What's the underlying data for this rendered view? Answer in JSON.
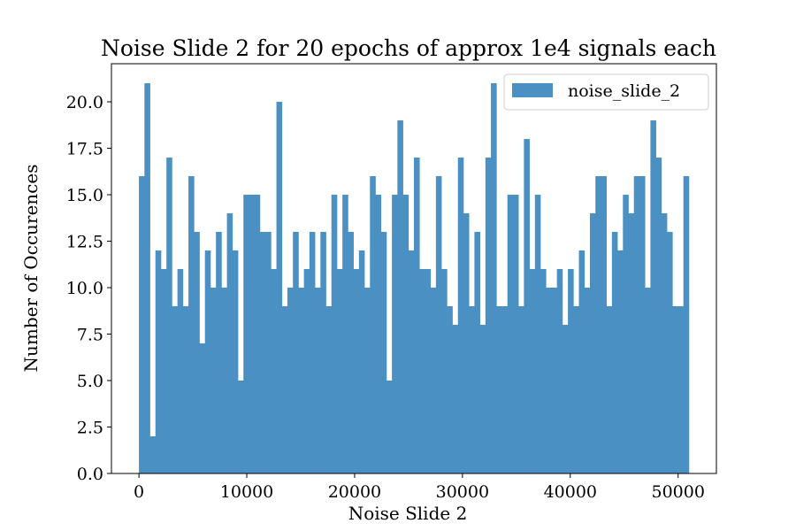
{
  "chart_data": {
    "type": "bar",
    "title": "Noise Slide 2 for 20 epochs of approx 1e4 signals each",
    "xlabel": "Noise Slide 2",
    "ylabel": "Number of Occurences",
    "xlim": [
      -2550,
      53550
    ],
    "ylim": [
      0,
      22.05
    ],
    "bin_start": 0,
    "bin_width": 510,
    "x_ticks": [
      0,
      10000,
      20000,
      30000,
      40000,
      50000
    ],
    "x_tick_labels": [
      "0",
      "10000",
      "20000",
      "30000",
      "40000",
      "50000"
    ],
    "y_ticks": [
      0,
      2.5,
      5,
      7.5,
      10,
      12.5,
      15,
      17.5,
      20
    ],
    "y_tick_labels": [
      "0.0",
      "2.5",
      "5.0",
      "7.5",
      "10.0",
      "12.5",
      "15.0",
      "17.5",
      "20.0"
    ],
    "grid": false,
    "legend_position": "top-right",
    "series": [
      {
        "name": "noise_slide_2",
        "color": "#4a90c2",
        "values": [
          16,
          21,
          2,
          12,
          11,
          17,
          9,
          11,
          9,
          16,
          13,
          7,
          12,
          10,
          13,
          10,
          14,
          12,
          5,
          15,
          15,
          15,
          13,
          13,
          11,
          20,
          9,
          10,
          13,
          10,
          11,
          13,
          10,
          13,
          9,
          15,
          11,
          15,
          13,
          11,
          12,
          10,
          16,
          15,
          13,
          5,
          15,
          19,
          15,
          12,
          17,
          11,
          11,
          10,
          16,
          11,
          9,
          8,
          17,
          14,
          9,
          13,
          8,
          17,
          21,
          9,
          9,
          15,
          15,
          9,
          18,
          11,
          15,
          11,
          10,
          10,
          11,
          8,
          11,
          9,
          12,
          10,
          14,
          16,
          16,
          9,
          13,
          12,
          15,
          14,
          16,
          16,
          10,
          19,
          17,
          14,
          13,
          9,
          9,
          16
        ]
      }
    ]
  }
}
